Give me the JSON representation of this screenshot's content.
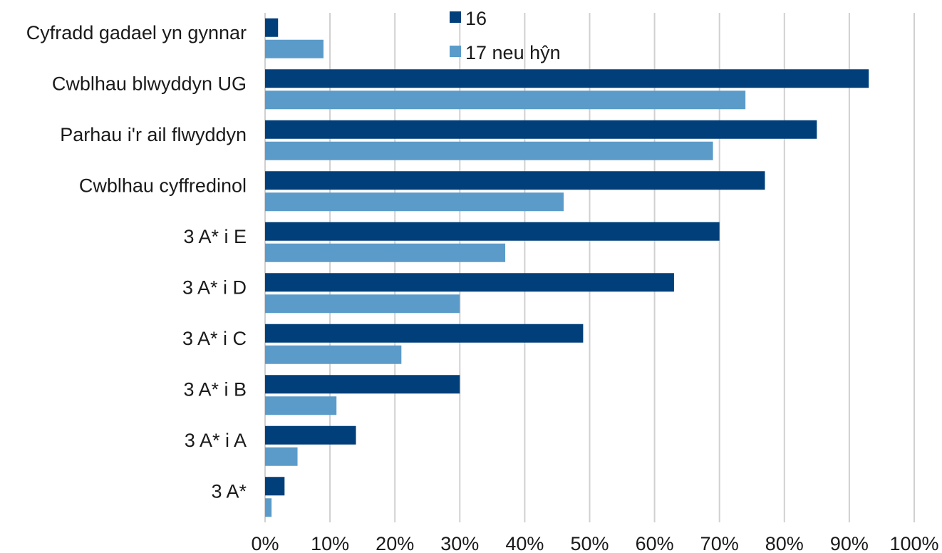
{
  "chart_data": {
    "type": "bar",
    "orientation": "horizontal",
    "categories": [
      "Cyfradd gadael yn gynnar",
      "Cwblhau blwyddyn UG",
      "Parhau i'r ail flwyddyn",
      "Cwblhau cyffredinol",
      "3 A* i E",
      "3 A* i D",
      "3 A* i C",
      "3 A* i B",
      "3 A* i A",
      "3 A*"
    ],
    "series": [
      {
        "name": "16",
        "color": "#003f7a",
        "values": [
          2,
          93,
          85,
          77,
          70,
          63,
          49,
          30,
          14,
          3
        ]
      },
      {
        "name": "17 neu hŷn",
        "color": "#5b9bc9",
        "values": [
          9,
          74,
          69,
          46,
          37,
          30,
          21,
          11,
          5,
          1
        ]
      }
    ],
    "xlim": [
      0,
      100
    ],
    "xticks": [
      "0%",
      "10%",
      "20%",
      "30%",
      "40%",
      "50%",
      "60%",
      "70%",
      "80%",
      "90%",
      "100%"
    ],
    "grid": true,
    "legend_position": "top-center"
  }
}
